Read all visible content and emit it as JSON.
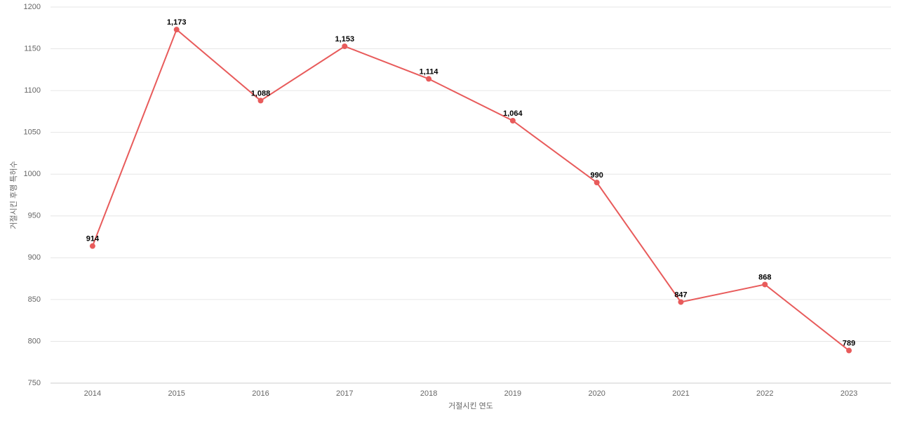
{
  "chart_data": {
    "type": "line",
    "x_label": "거절시킨 연도",
    "y_label": "거절시킨 후행 특허수",
    "categories": [
      "2014",
      "2015",
      "2016",
      "2017",
      "2018",
      "2019",
      "2020",
      "2021",
      "2022",
      "2023"
    ],
    "values": [
      914,
      1173,
      1088,
      1153,
      1114,
      1064,
      990,
      847,
      868,
      789
    ],
    "value_labels": [
      "914",
      "1,173",
      "1,088",
      "1,153",
      "1,114",
      "1,064",
      "990",
      "847",
      "868",
      "789"
    ],
    "color": "#e85b5b",
    "ylim": [
      750,
      1200
    ],
    "yticks": [
      750,
      800,
      850,
      900,
      950,
      1000,
      1050,
      1100,
      1150,
      1200
    ],
    "grid": true
  }
}
